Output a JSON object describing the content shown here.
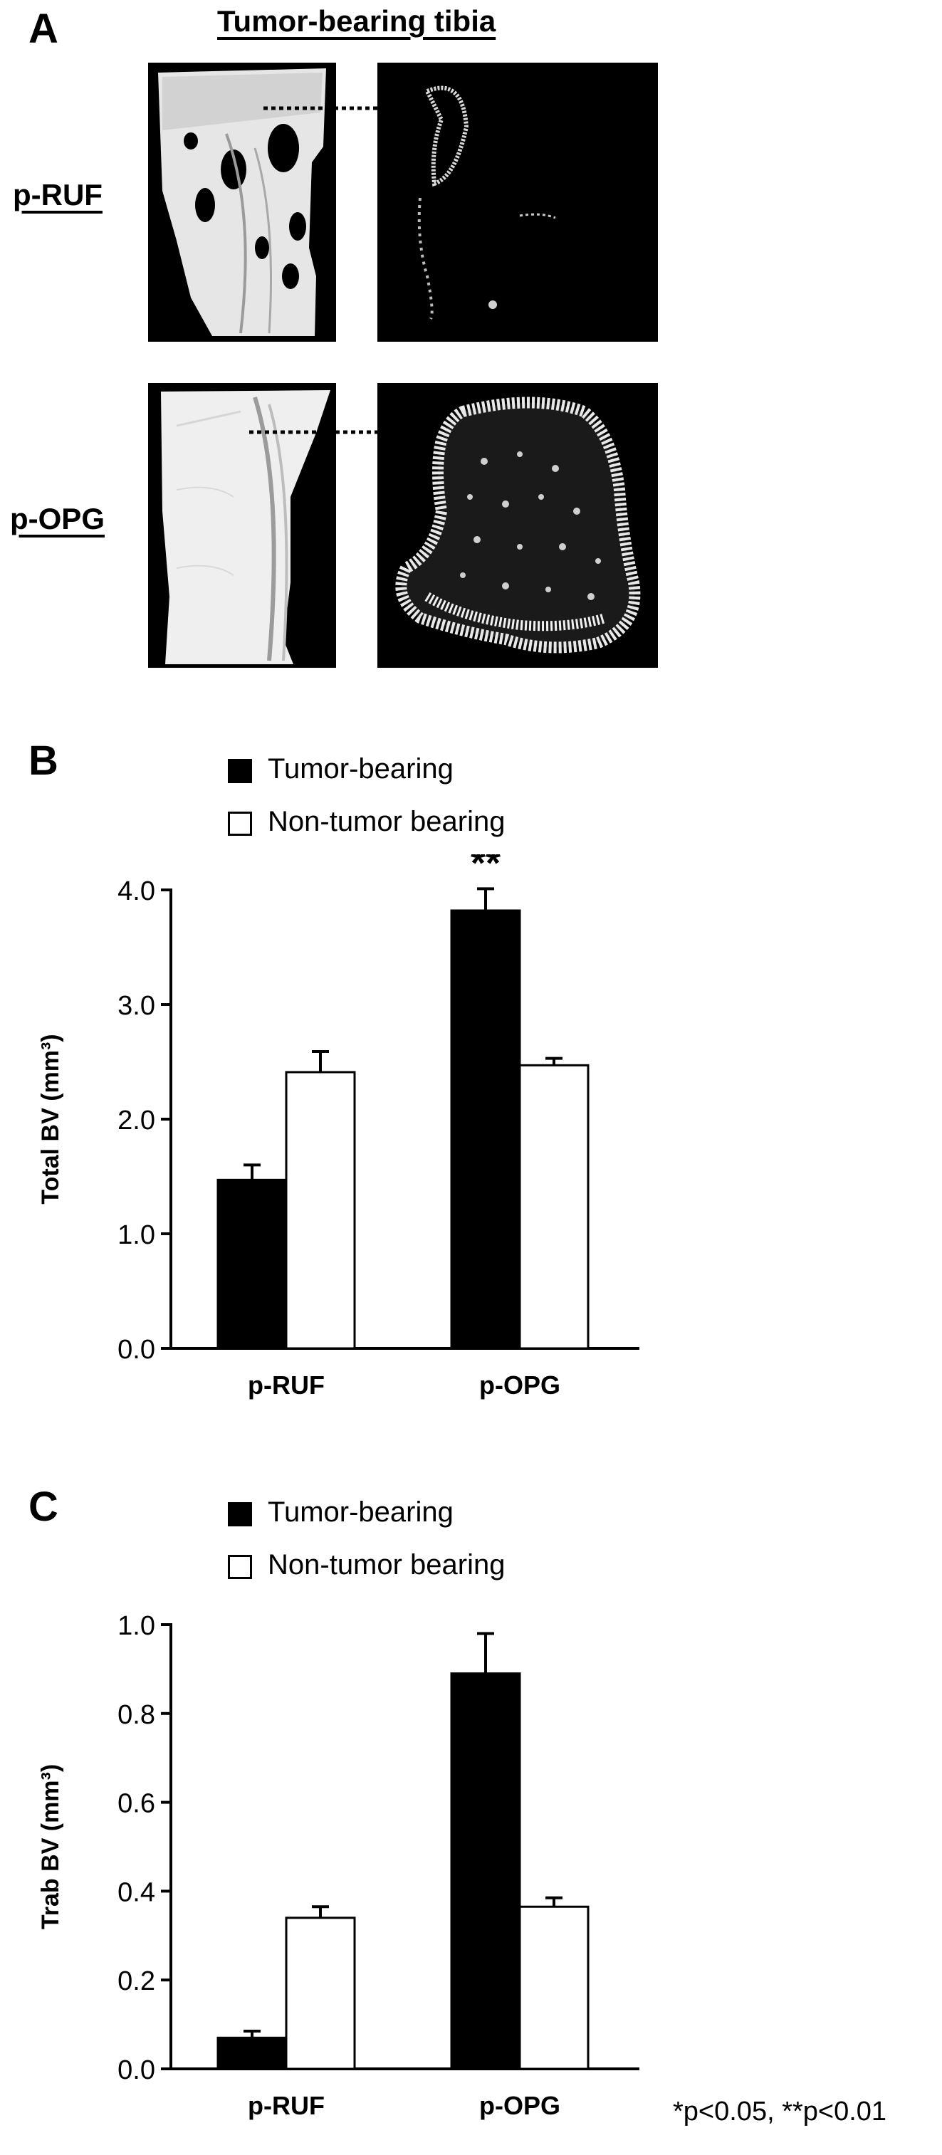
{
  "panel_a": {
    "letter": "A",
    "title": "Tumor-bearing tibia",
    "rows": [
      {
        "label": "p-RUF"
      },
      {
        "label": "p-OPG"
      }
    ]
  },
  "chart_data": [
    {
      "panel_letter": "B",
      "type": "bar",
      "categories": [
        "p-RUF",
        "p-OPG"
      ],
      "series": [
        {
          "name": "Tumor-bearing",
          "values": [
            1.47,
            3.82
          ],
          "errors": [
            0.13,
            0.19
          ],
          "color": "#000000"
        },
        {
          "name": "Non-tumor bearing",
          "values": [
            2.41,
            2.47
          ],
          "errors": [
            0.18,
            0.06
          ],
          "color": "#ffffff"
        }
      ],
      "ylabel": "Total BV (mm³)",
      "ylim": [
        0,
        4.0
      ],
      "yticks": [
        "0.0",
        "1.0",
        "2.0",
        "3.0",
        "4.0"
      ],
      "annotations": [
        {
          "text": "**",
          "category": "p-OPG",
          "series": "Tumor-bearing"
        }
      ],
      "legend": "top-left",
      "grid": false
    },
    {
      "panel_letter": "C",
      "type": "bar",
      "categories": [
        "p-RUF",
        "p-OPG"
      ],
      "series": [
        {
          "name": "Tumor-bearing",
          "values": [
            0.07,
            0.89
          ],
          "errors": [
            0.015,
            0.09
          ],
          "color": "#000000"
        },
        {
          "name": "Non-tumor bearing",
          "values": [
            0.34,
            0.365
          ],
          "errors": [
            0.025,
            0.02
          ],
          "color": "#ffffff"
        }
      ],
      "ylabel": "Trab BV (mm³)",
      "ylim": [
        0,
        1.0
      ],
      "yticks": [
        "0.0",
        "0.2",
        "0.4",
        "0.6",
        "0.8",
        "1.0"
      ],
      "annotations": [],
      "legend": "top-left",
      "grid": false
    }
  ],
  "footnote": "*p<0.05, **p<0.01"
}
